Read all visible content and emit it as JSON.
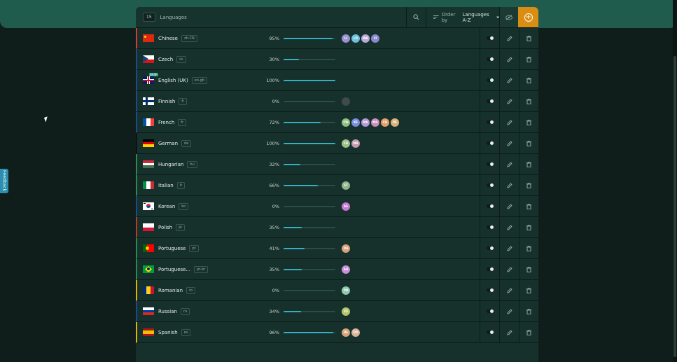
{
  "toolbar": {
    "count": "15",
    "label": "Languages",
    "order_label": "Order by",
    "order_value": "Languages A-Z",
    "search_icon": "search-icon",
    "eye_icon": "eye-off-icon",
    "add_icon": "add-circle-icon"
  },
  "feedback": {
    "label": "Feedback"
  },
  "colors": {
    "accent": "#d98d12",
    "bar": "#33b0c4",
    "background": "#0f1e1b"
  },
  "languages": [
    {
      "name": "Chinese",
      "code": "zh-CN",
      "percent": "95%",
      "progress": 0.95,
      "base": "",
      "accent": "#e0392f",
      "flag": {
        "type": "solid",
        "colors": [
          "#de2910"
        ]
      },
      "avatars": [
        {
          "text": "LI",
          "color": "#9b8fd6"
        },
        {
          "text": "LD",
          "color": "#6bc1d8"
        },
        {
          "text": "WA",
          "color": "#b9a9d9"
        },
        {
          "text": "XI",
          "color": "#8a88cf"
        }
      ]
    },
    {
      "name": "Czech",
      "code": "cs",
      "percent": "30%",
      "progress": 0.3,
      "base": "",
      "accent": "#1a4d8f",
      "flag": {
        "type": "czech",
        "colors": [
          "#ffffff",
          "#d7141a",
          "#11457e"
        ]
      },
      "avatars": []
    },
    {
      "name": "English (UK)",
      "code": "en-gb",
      "percent": "100%",
      "progress": 1.0,
      "base": "BASE",
      "accent": "#1a4d8f",
      "flag": {
        "type": "uk",
        "colors": [
          "#012169",
          "#ffffff",
          "#c8102e"
        ]
      },
      "avatars": []
    },
    {
      "name": "Finnish",
      "code": "fi",
      "percent": "0%",
      "progress": 0.0,
      "base": "",
      "accent": "#1a4d8f",
      "flag": {
        "type": "cross",
        "colors": [
          "#ffffff",
          "#002f6c"
        ]
      },
      "avatars": [
        {
          "text": "",
          "color": "#3e4b48"
        }
      ]
    },
    {
      "name": "French",
      "code": "fr",
      "percent": "72%",
      "progress": 0.72,
      "base": "",
      "accent": "#1a4d8f",
      "flag": {
        "type": "vertical",
        "colors": [
          "#0055a4",
          "#ffffff",
          "#ef4135"
        ]
      },
      "avatars": [
        {
          "text": "CW",
          "color": "#8fc07a"
        },
        {
          "text": "KE",
          "color": "#7a8ee0"
        },
        {
          "text": "MA",
          "color": "#b29ad6"
        },
        {
          "text": "MO",
          "color": "#c98fb8"
        },
        {
          "text": "CH",
          "color": "#e59f6a"
        },
        {
          "text": "PE",
          "color": "#d9b27a"
        }
      ]
    },
    {
      "name": "German",
      "code": "de",
      "percent": "100%",
      "progress": 1.0,
      "base": "",
      "accent": "#111111",
      "flag": {
        "type": "horizontal",
        "colors": [
          "#000000",
          "#dd0000",
          "#ffce00"
        ]
      },
      "avatars": [
        {
          "text": "FH",
          "color": "#9fbf8a"
        },
        {
          "text": "MA",
          "color": "#c49ab3"
        }
      ]
    },
    {
      "name": "Hungarian",
      "code": "hu",
      "percent": "32%",
      "progress": 0.32,
      "base": "",
      "accent": "#2e8b4e",
      "flag": {
        "type": "horizontal",
        "colors": [
          "#cd2a3e",
          "#ffffff",
          "#436f4d"
        ]
      },
      "avatars": []
    },
    {
      "name": "Italian",
      "code": "it",
      "percent": "66%",
      "progress": 0.66,
      "base": "",
      "accent": "#2e8b4e",
      "flag": {
        "type": "vertical",
        "colors": [
          "#009246",
          "#ffffff",
          "#ce2b37"
        ]
      },
      "avatars": [
        {
          "text": "ST",
          "color": "#8fb58c"
        }
      ]
    },
    {
      "name": "Korean",
      "code": "ko",
      "percent": "0%",
      "progress": 0.0,
      "base": "",
      "accent": "#1a4d8f",
      "flag": {
        "type": "korea",
        "colors": [
          "#ffffff",
          "#cd2e3a",
          "#0047a0",
          "#000000"
        ]
      },
      "avatars": [
        {
          "text": "AS",
          "color": "#c779d0"
        }
      ]
    },
    {
      "name": "Polish",
      "code": "pl",
      "percent": "35%",
      "progress": 0.35,
      "base": "",
      "accent": "#c0392b",
      "flag": {
        "type": "horizontal2",
        "colors": [
          "#ffffff",
          "#dc143c"
        ]
      },
      "avatars": []
    },
    {
      "name": "Portuguese",
      "code": "pt",
      "percent": "41%",
      "progress": 0.41,
      "base": "",
      "accent": "#2e8b4e",
      "flag": {
        "type": "portugal",
        "colors": [
          "#006600",
          "#ff0000",
          "#ffcc00"
        ]
      },
      "avatars": [
        {
          "text": "DA",
          "color": "#d8a27a"
        }
      ]
    },
    {
      "name": "Portuguese...",
      "code": "pt-br",
      "percent": "35%",
      "progress": 0.35,
      "base": "",
      "accent": "#2e8b4e",
      "flag": {
        "type": "brazil",
        "colors": [
          "#009c3b",
          "#ffdf00",
          "#002776"
        ]
      },
      "avatars": [
        {
          "text": "AH",
          "color": "#c98fd8"
        }
      ]
    },
    {
      "name": "Romanian",
      "code": "ro",
      "percent": "0%",
      "progress": 0.0,
      "base": "",
      "accent": "#e0b400",
      "flag": {
        "type": "vertical",
        "colors": [
          "#002b7f",
          "#fcd116",
          "#ce1126"
        ]
      },
      "avatars": [
        {
          "text": "PN",
          "color": "#8fc9b0"
        }
      ]
    },
    {
      "name": "Russian",
      "code": "ru",
      "percent": "34%",
      "progress": 0.34,
      "base": "",
      "accent": "#1a4d8f",
      "flag": {
        "type": "horizontal",
        "colors": [
          "#ffffff",
          "#0039a6",
          "#d52b1e"
        ]
      },
      "avatars": [
        {
          "text": "ZS",
          "color": "#b3c46a"
        }
      ]
    },
    {
      "name": "Spanish",
      "code": "es",
      "percent": "96%",
      "progress": 0.96,
      "base": "",
      "accent": "#e0b400",
      "flag": {
        "type": "spain",
        "colors": [
          "#aa151b",
          "#f1bf00"
        ]
      },
      "avatars": [
        {
          "text": "DE",
          "color": "#d6a27a"
        },
        {
          "text": "DO",
          "color": "#d8b29a"
        }
      ]
    }
  ]
}
